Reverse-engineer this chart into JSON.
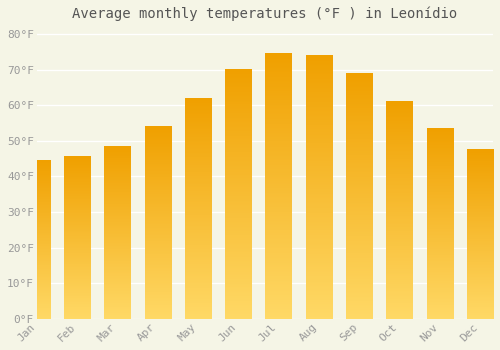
{
  "title": "Average monthly temperatures (°F ) in Leonídio",
  "months": [
    "Jan",
    "Feb",
    "Mar",
    "Apr",
    "May",
    "Jun",
    "Jul",
    "Aug",
    "Sep",
    "Oct",
    "Nov",
    "Dec"
  ],
  "values": [
    44.5,
    45.5,
    48.5,
    54,
    62,
    70,
    74.5,
    74,
    69,
    61,
    53.5,
    47.5
  ],
  "grad_bottom": "#FFD966",
  "grad_top": "#F0A000",
  "ylim": [
    0,
    82
  ],
  "yticks": [
    0,
    10,
    20,
    30,
    40,
    50,
    60,
    70,
    80
  ],
  "ytick_labels": [
    "0°F",
    "10°F",
    "20°F",
    "30°F",
    "40°F",
    "50°F",
    "60°F",
    "70°F",
    "80°F"
  ],
  "background_color": "#f5f5e6",
  "grid_color": "#e8e8e8",
  "title_fontsize": 10,
  "tick_fontsize": 8,
  "bar_width": 0.65
}
